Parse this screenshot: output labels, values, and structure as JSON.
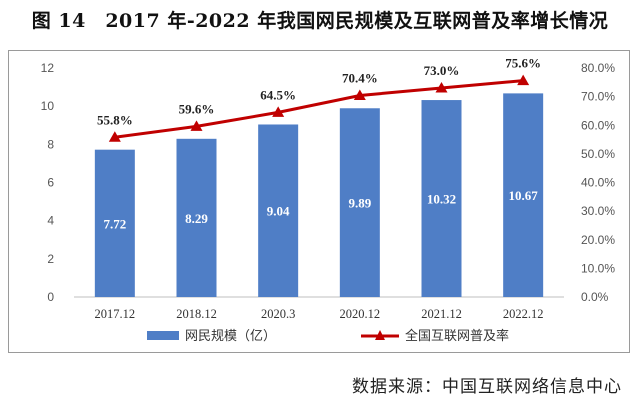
{
  "figure": {
    "number": "图 14",
    "title": "2017 年-2022 年我国网民规模及互联网普及率增长情况",
    "source": "数据来源：中国互联网络信息中心"
  },
  "colors": {
    "bar": "#4f7ec6",
    "line": "#c00000",
    "axis_text": "#555555",
    "bar_label": "#ffffff",
    "line_label": "#222222"
  },
  "chart_data": {
    "type": "bar",
    "categories": [
      "2017.12",
      "2018.12",
      "2020.3",
      "2020.12",
      "2021.12",
      "2022.12"
    ],
    "series": [
      {
        "name": "网民规模（亿）",
        "type": "bar",
        "axis": "left",
        "values": [
          7.72,
          8.29,
          9.04,
          9.89,
          10.32,
          10.67
        ],
        "labels": [
          "7.72",
          "8.29",
          "9.04",
          "9.89",
          "10.32",
          "10.67"
        ]
      },
      {
        "name": "全国互联网普及率",
        "type": "line",
        "axis": "right",
        "marker": "triangle",
        "values": [
          55.8,
          59.6,
          64.5,
          70.4,
          73.0,
          75.6
        ],
        "labels": [
          "55.8%",
          "59.6%",
          "64.5%",
          "70.4%",
          "73.0%",
          "75.6%"
        ]
      }
    ],
    "y_left": {
      "min": 0,
      "max": 12,
      "ticks": [
        0,
        2,
        4,
        6,
        8,
        10,
        12
      ],
      "tick_labels": [
        "0",
        "2",
        "4",
        "6",
        "8",
        "10",
        "12"
      ]
    },
    "y_right": {
      "min": 0,
      "max": 80,
      "ticks": [
        0,
        10,
        20,
        30,
        40,
        50,
        60,
        70,
        80
      ],
      "tick_labels": [
        "0.0%",
        "10.0%",
        "20.0%",
        "30.0%",
        "40.0%",
        "50.0%",
        "60.0%",
        "70.0%",
        "80.0%"
      ]
    },
    "grid": false,
    "legend_position": "bottom"
  }
}
